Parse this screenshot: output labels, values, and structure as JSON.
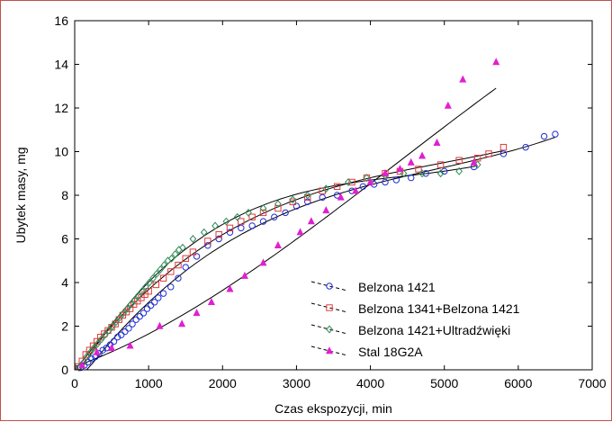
{
  "chart_data": {
    "type": "scatter",
    "xlabel": "Czas ekspozycji, min",
    "ylabel": "Ubytek masy, mg",
    "xlim": [
      0,
      7000
    ],
    "ylim": [
      0,
      16
    ],
    "xticks": [
      0,
      1000,
      2000,
      3000,
      4000,
      5000,
      6000,
      7000
    ],
    "yticks": [
      0,
      2,
      4,
      6,
      8,
      10,
      12,
      14,
      16
    ],
    "grid": false,
    "legend_position": "bottom-right",
    "colors": {
      "frame": "#c0504d",
      "curve": "#000000"
    },
    "series": [
      {
        "name": "Belzona 1421",
        "marker": "circle",
        "color": "#1f2ed6",
        "x": [
          80,
          130,
          180,
          230,
          280,
          330,
          380,
          430,
          480,
          530,
          580,
          630,
          680,
          730,
          780,
          830,
          880,
          930,
          980,
          1030,
          1080,
          1130,
          1200,
          1300,
          1400,
          1500,
          1650,
          1800,
          1950,
          2100,
          2250,
          2400,
          2550,
          2700,
          2850,
          3000,
          3150,
          3350,
          3550,
          3750,
          3900,
          4050,
          4200,
          4350,
          4550,
          4750,
          5000,
          5400,
          5800,
          6100,
          6350,
          6500
        ],
        "y": [
          0.1,
          0.2,
          0.35,
          0.5,
          0.6,
          0.75,
          0.9,
          1.0,
          1.15,
          1.3,
          1.5,
          1.6,
          1.75,
          1.9,
          2.1,
          2.3,
          2.45,
          2.6,
          2.8,
          2.95,
          3.1,
          3.3,
          3.5,
          3.8,
          4.2,
          4.7,
          5.2,
          5.7,
          6.0,
          6.3,
          6.5,
          6.6,
          6.8,
          7.0,
          7.2,
          7.5,
          7.7,
          7.9,
          8.0,
          8.2,
          8.4,
          8.5,
          8.6,
          8.7,
          8.8,
          9.0,
          9.1,
          9.3,
          9.9,
          10.2,
          10.7,
          10.8
        ]
      },
      {
        "name": "Belzona 1341+Belzona 1421",
        "marker": "square",
        "color": "#e03a3a",
        "x": [
          50,
          100,
          150,
          200,
          250,
          300,
          350,
          400,
          450,
          500,
          550,
          600,
          650,
          700,
          750,
          800,
          850,
          900,
          950,
          1000,
          1100,
          1200,
          1300,
          1400,
          1500,
          1600,
          1800,
          1950,
          2100,
          2250,
          2400,
          2550,
          2750,
          2950,
          3150,
          3350,
          3550,
          3750,
          3950,
          4200,
          4400,
          4650,
          4950,
          5200,
          5450,
          5600,
          5800
        ],
        "y": [
          0.15,
          0.4,
          0.7,
          0.9,
          1.1,
          1.3,
          1.5,
          1.65,
          1.8,
          1.95,
          2.1,
          2.3,
          2.5,
          2.65,
          2.8,
          3.0,
          3.15,
          3.3,
          3.45,
          3.6,
          3.9,
          4.2,
          4.5,
          4.8,
          5.1,
          5.4,
          5.9,
          6.2,
          6.5,
          6.8,
          7.0,
          7.2,
          7.4,
          7.7,
          7.9,
          8.2,
          8.4,
          8.6,
          8.8,
          9.0,
          9.1,
          9.2,
          9.4,
          9.6,
          9.7,
          9.9,
          10.2
        ]
      },
      {
        "name": "Belzona 1421+Ultradźwięki",
        "marker": "diamond",
        "color": "#2e8b57",
        "x": [
          60,
          110,
          160,
          210,
          260,
          310,
          360,
          410,
          460,
          510,
          560,
          610,
          660,
          710,
          760,
          810,
          860,
          910,
          960,
          1010,
          1060,
          1110,
          1160,
          1210,
          1260,
          1310,
          1360,
          1410,
          1460,
          1600,
          1750,
          1900,
          2050,
          2200,
          2350,
          2550,
          2750,
          2950,
          3150,
          3400,
          3700,
          3950,
          4200,
          4450,
          4700,
          4950,
          5200,
          5450
        ],
        "y": [
          0.1,
          0.3,
          0.6,
          0.8,
          1.0,
          1.2,
          1.4,
          1.6,
          1.8,
          2.0,
          2.2,
          2.4,
          2.6,
          2.8,
          3.0,
          3.2,
          3.4,
          3.6,
          3.8,
          4.0,
          4.2,
          4.4,
          4.6,
          4.8,
          5.0,
          5.1,
          5.3,
          5.5,
          5.6,
          6.0,
          6.3,
          6.6,
          6.8,
          7.0,
          7.2,
          7.4,
          7.6,
          7.8,
          8.0,
          8.3,
          8.6,
          8.8,
          8.9,
          9.0,
          9.0,
          9.0,
          9.1,
          9.4
        ]
      },
      {
        "name": "Stal 18G2A",
        "marker": "triangle",
        "color": "#e020d0",
        "x": [
          100,
          300,
          500,
          750,
          1150,
          1450,
          1650,
          1850,
          2100,
          2300,
          2550,
          2750,
          3050,
          3200,
          3400,
          3600,
          3800,
          4000,
          4200,
          4400,
          4550,
          4700,
          4900,
          5050,
          5250,
          5400,
          5700
        ],
        "y": [
          0.2,
          0.8,
          1.0,
          1.1,
          2.0,
          2.1,
          2.6,
          3.1,
          3.7,
          4.3,
          4.9,
          5.7,
          6.3,
          6.8,
          7.3,
          7.9,
          8.2,
          8.6,
          9.0,
          9.2,
          9.5,
          9.8,
          10.4,
          12.1,
          13.3,
          9.5,
          14.1
        ]
      }
    ]
  }
}
